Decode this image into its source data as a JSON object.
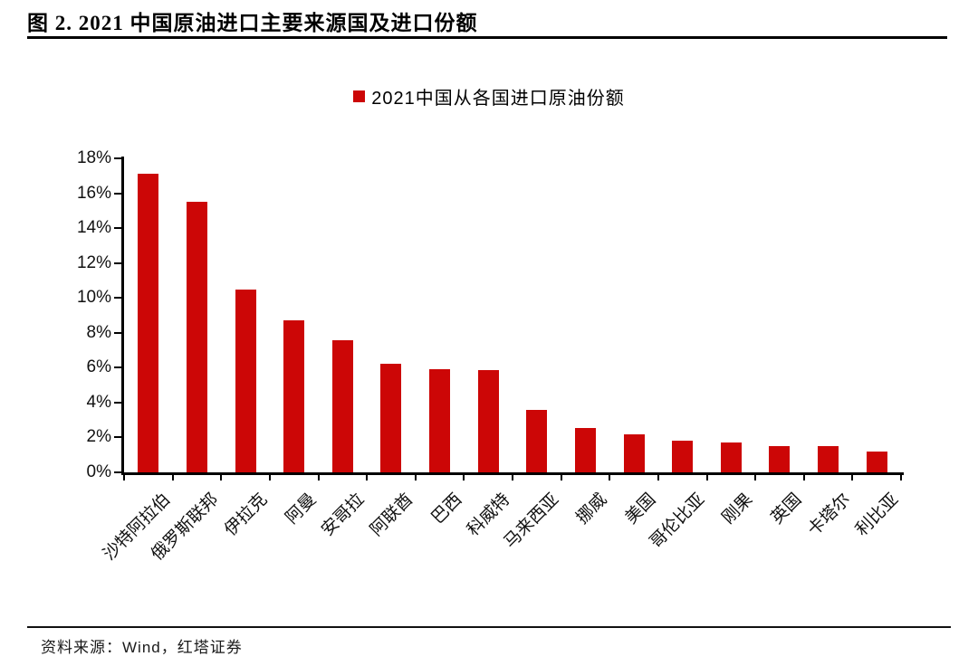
{
  "figure": {
    "title": "图 2. 2021 中国原油进口主要来源国及进口份额",
    "source": "资料来源：Wind，红塔证券"
  },
  "chart_data": {
    "type": "bar",
    "title": "图 2. 2021 中国原油进口主要来源国及进口份额",
    "legend": "2021中国从各国进口原油份额",
    "legend_position": "top",
    "categories": [
      "沙特阿拉伯",
      "俄罗斯联邦",
      "伊拉克",
      "阿曼",
      "安哥拉",
      "阿联酋",
      "巴西",
      "科威特",
      "马来西亚",
      "挪威",
      "美国",
      "哥伦比亚",
      "刚果",
      "英国",
      "卡塔尔",
      "利比亚"
    ],
    "values": [
      17.1,
      15.5,
      10.5,
      8.7,
      7.6,
      6.2,
      5.9,
      5.85,
      3.6,
      2.55,
      2.2,
      1.8,
      1.7,
      1.5,
      1.5,
      1.2
    ],
    "unit": "%",
    "xlabel": "",
    "ylabel": "",
    "ylim": [
      0,
      18
    ],
    "yticks": [
      0,
      2,
      4,
      6,
      8,
      10,
      12,
      14,
      16,
      18
    ],
    "ytick_suffix": "%",
    "grid": false,
    "bar_color": "#CC0606",
    "axis_color": "#000000",
    "title_color": "#000000"
  }
}
